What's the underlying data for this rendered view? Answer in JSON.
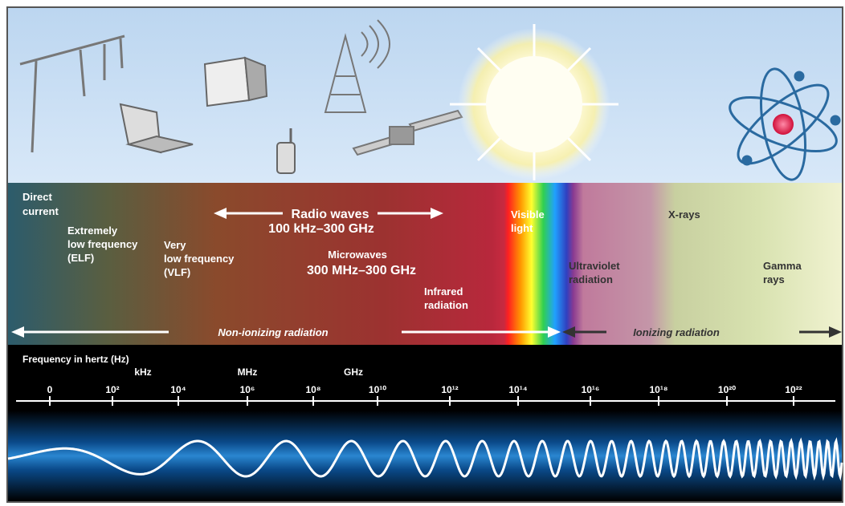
{
  "regions": {
    "direct_current": [
      "Direct",
      "current"
    ],
    "elf": [
      "Extremely",
      "low frequency",
      "(ELF)"
    ],
    "vlf": [
      "Very",
      "low frequency",
      "(VLF)"
    ],
    "radio": [
      "Radio waves",
      "100 kHz–300 GHz"
    ],
    "microwaves": [
      "Microwaves",
      "300 MHz–300 GHz"
    ],
    "infrared": [
      "Infrared",
      "radiation"
    ],
    "visible": [
      "Visible",
      "light"
    ],
    "ultraviolet": [
      "Ultraviolet",
      "radiation"
    ],
    "xrays": [
      "X-rays"
    ],
    "gamma": [
      "Gamma",
      "rays"
    ]
  },
  "radiation": {
    "non_ionizing": "Non-ionizing radiation",
    "ionizing": "Ionizing radiation"
  },
  "axis": {
    "title": "Frequency in hertz (Hz)",
    "units": [
      "kHz",
      "MHz",
      "GHz"
    ],
    "ticks": [
      "0",
      "10²",
      "10⁴",
      "10⁶",
      "10⁸",
      "10¹⁰",
      "10¹²",
      "10¹⁴",
      "10¹⁶",
      "10¹⁸",
      "10²⁰",
      "10²²"
    ]
  }
}
